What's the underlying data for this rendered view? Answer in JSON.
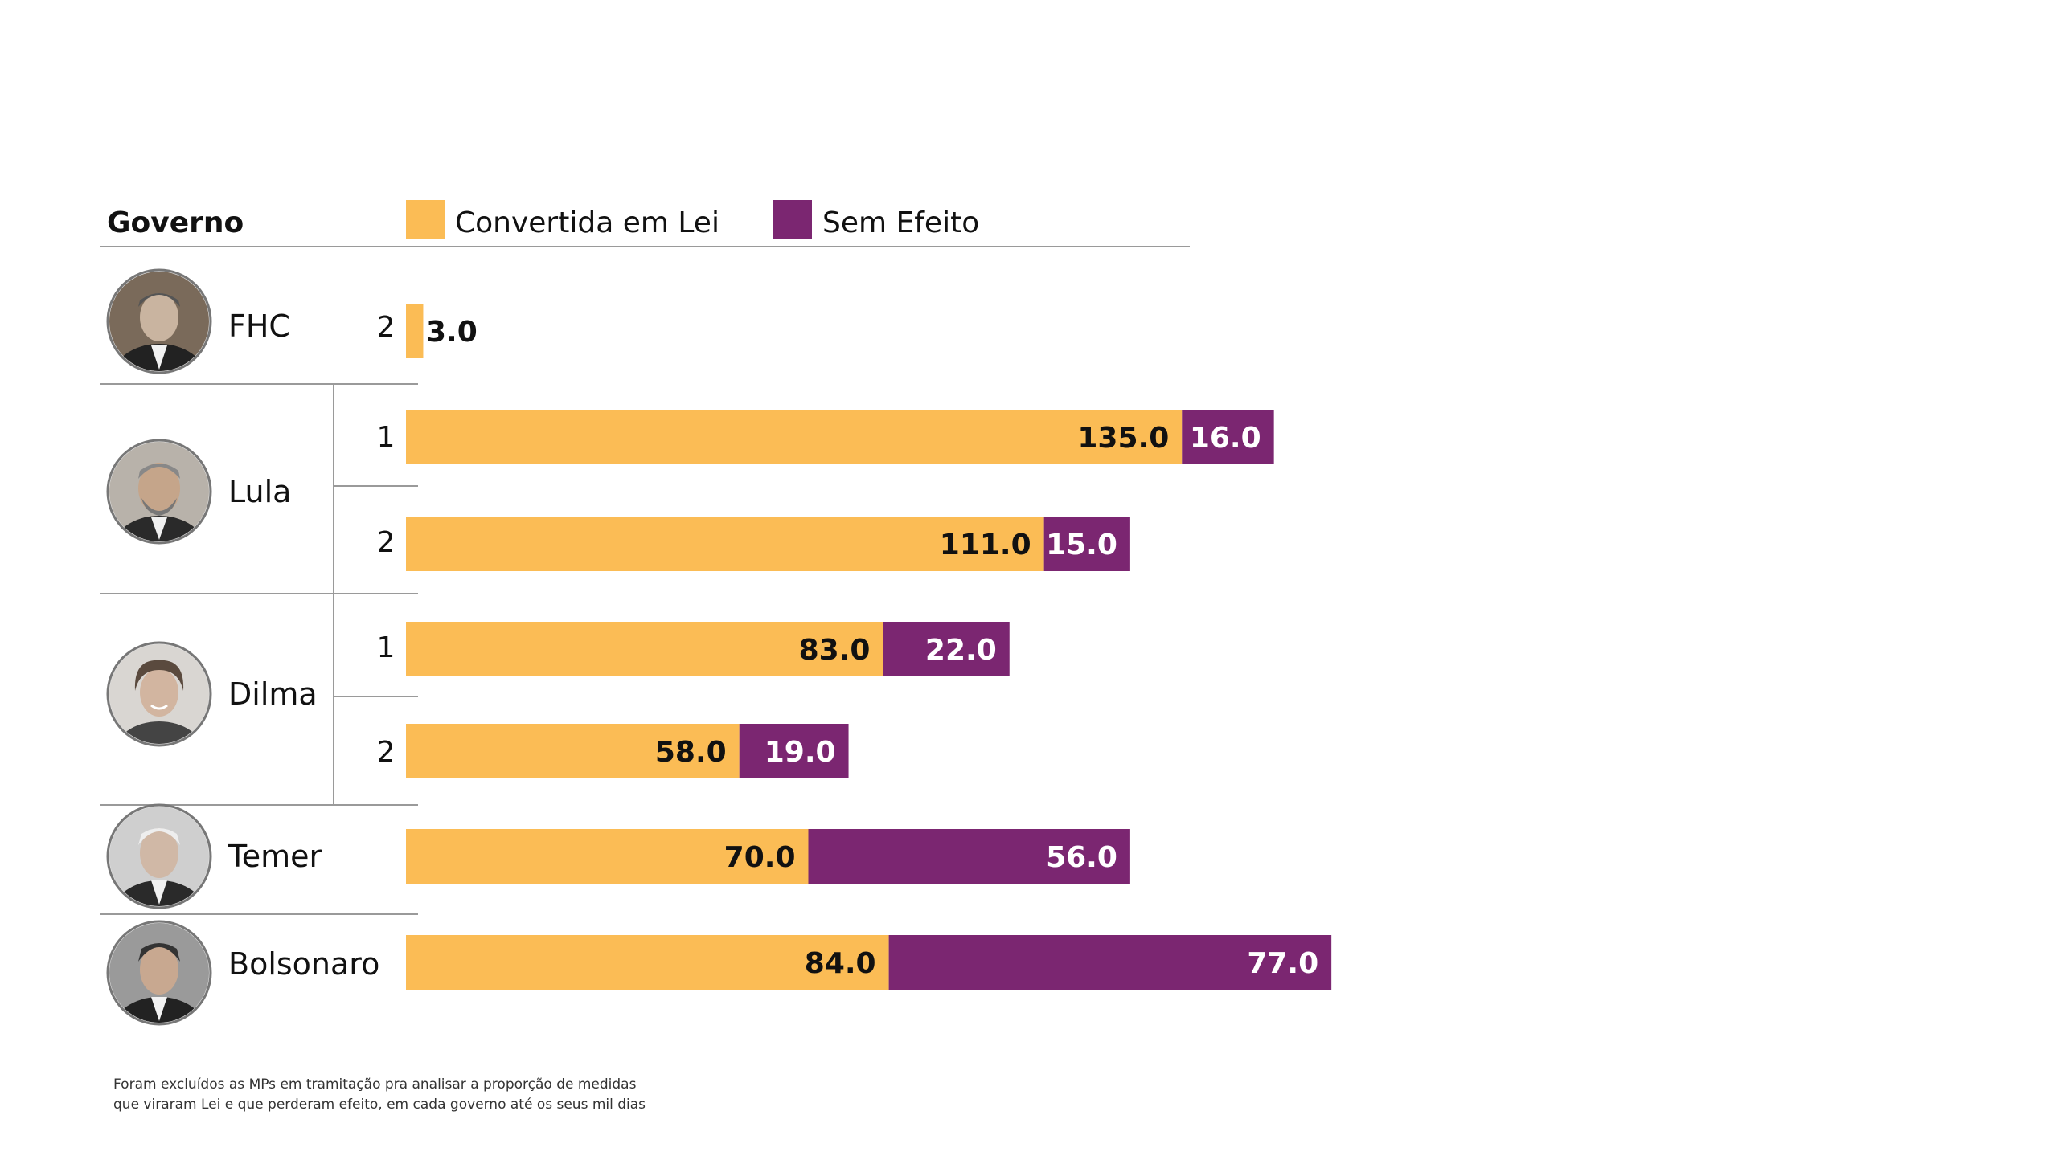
{
  "header": {
    "column_label": "Governo"
  },
  "colors": {
    "convertida": "#fbbc55",
    "sem_efeito": "#7b2671",
    "text_dark": "#111111",
    "text_light": "#ffffff"
  },
  "chart_data": {
    "type": "bar",
    "orientation": "horizontal",
    "stacked": true,
    "legend_position": "top",
    "series": [
      {
        "name": "Convertida em Lei",
        "color": "#fbbc55"
      },
      {
        "name": "Sem Efeito",
        "color": "#7b2671"
      }
    ],
    "governments": [
      {
        "name": "FHC",
        "photo_icon": "fhc-portrait-icon",
        "terms": [
          {
            "term": "2",
            "convertida": 3.0,
            "sem_efeito": null
          }
        ]
      },
      {
        "name": "Lula",
        "photo_icon": "lula-portrait-icon",
        "terms": [
          {
            "term": "1",
            "convertida": 135.0,
            "sem_efeito": 16.0
          },
          {
            "term": "2",
            "convertida": 111.0,
            "sem_efeito": 15.0
          }
        ]
      },
      {
        "name": "Dilma",
        "photo_icon": "dilma-portrait-icon",
        "terms": [
          {
            "term": "1",
            "convertida": 83.0,
            "sem_efeito": 22.0
          },
          {
            "term": "2",
            "convertida": 58.0,
            "sem_efeito": 19.0
          }
        ]
      },
      {
        "name": "Temer",
        "photo_icon": "temer-portrait-icon",
        "terms": [
          {
            "term": "",
            "convertida": 70.0,
            "sem_efeito": 56.0
          }
        ]
      },
      {
        "name": "Bolsonaro",
        "photo_icon": "bolsonaro-portrait-icon",
        "terms": [
          {
            "term": "",
            "convertida": 84.0,
            "sem_efeito": 77.0
          }
        ]
      }
    ]
  },
  "footnote": {
    "line1": "Foram excluídos as MPs em tramitação pra analisar a proporção de medidas",
    "line2": "que viraram Lei e que perderam efeito, em cada governo até os seus mil dias"
  }
}
